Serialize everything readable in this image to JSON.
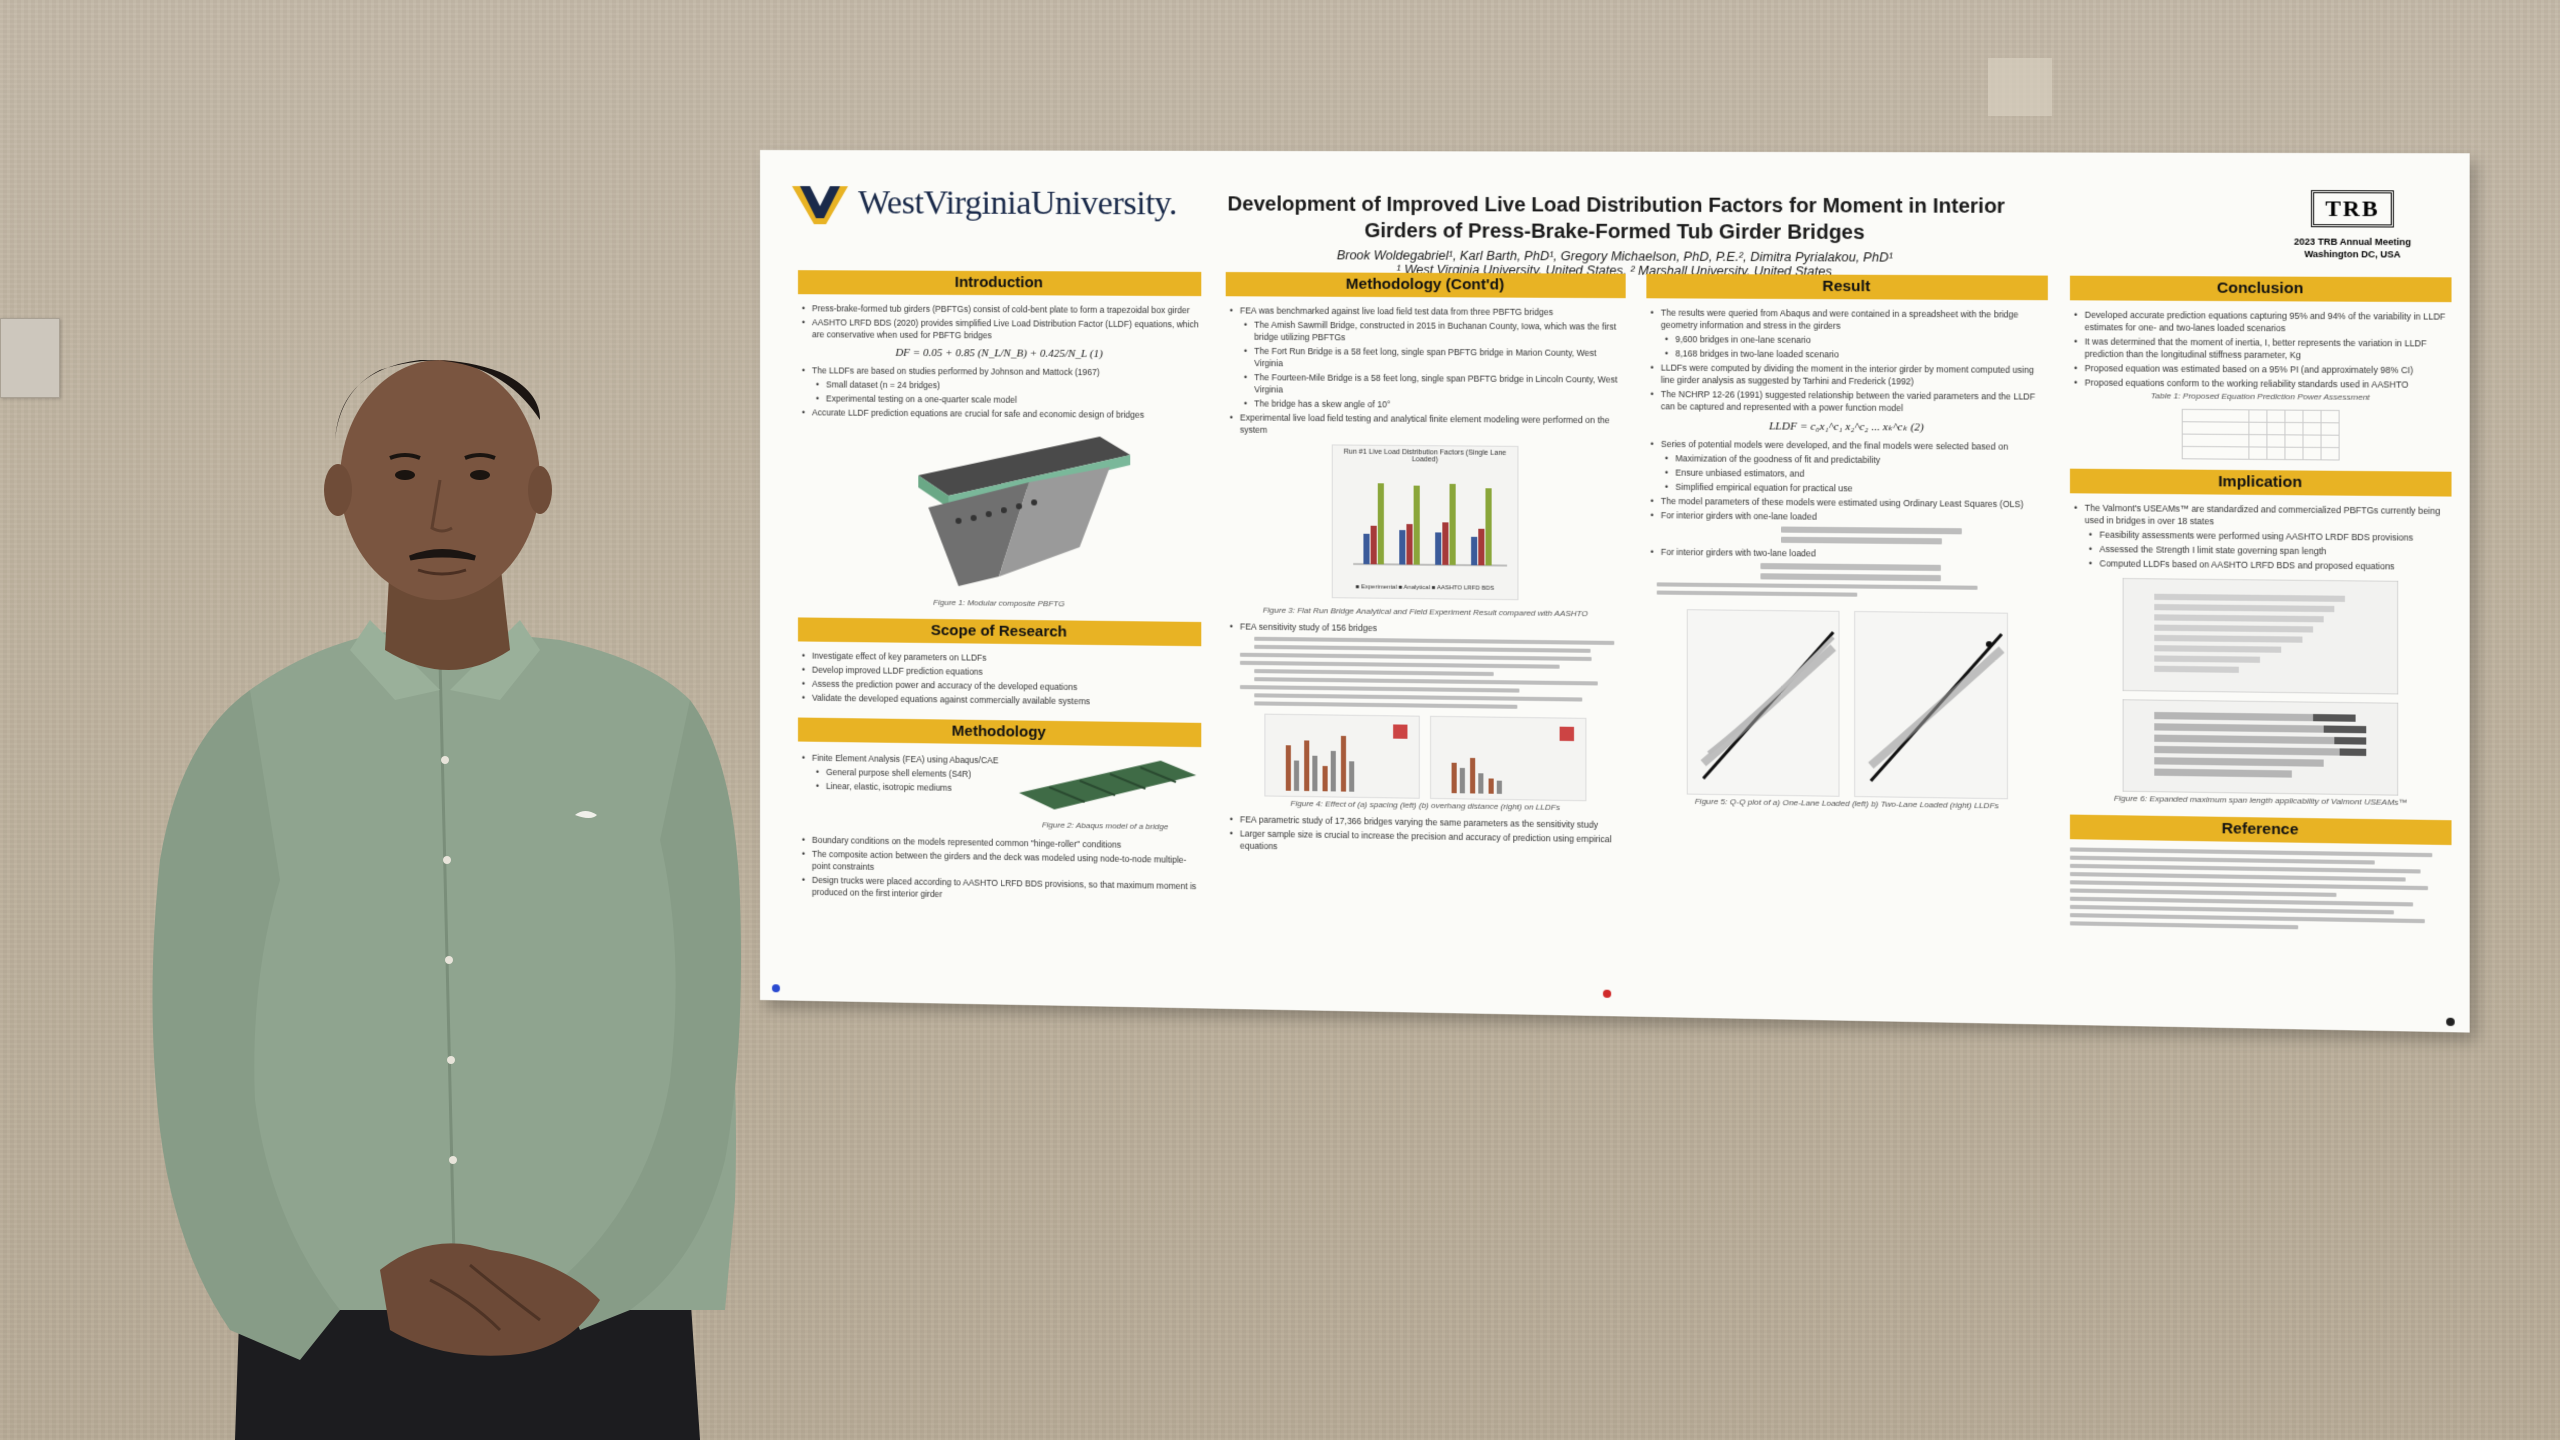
{
  "poster": {
    "university": "WestVirginiaUniversity.",
    "title_line1": "Development of Improved Live Load Distribution Factors for Moment in Interior",
    "title_line2": "Girders of Press-Brake-Formed Tub Girder Bridges",
    "authors": "Brook Woldegabriel¹, Karl Barth, PhD¹, Gregory Michaelson, PhD, P.E.², Dimitra Pyrialakou, PhD¹",
    "affiliations": "¹ West Virginia University, United States, ² Marshall University, United States",
    "trb_logo": "TRB",
    "trb_event": "2023 TRB Annual Meeting",
    "trb_location": "Washington DC, USA",
    "sections": {
      "introduction": "Introduction",
      "scope": "Scope of Research",
      "methodology": "Methodology",
      "methodology_contd": "Methodology (Cont'd)",
      "result": "Result",
      "conclusion": "Conclusion",
      "implication": "Implication",
      "reference": "Reference"
    },
    "introduction_bullets": [
      "Press-brake-formed tub girders (PBFTGs) consist of cold-bent plate to form a trapezoidal box girder",
      "AASHTO LRFD BDS (2020) provides simplified Live Load Distribution Factor (LLDF) equations, which are conservative when used for PBFTG bridges",
      "The LLDFs are based on studies performed by Johnson and Mattock (1967)",
      "Accurate LLDF prediction equations are crucial for safe and economic design of bridges"
    ],
    "introduction_sub": [
      "Small dataset (n = 24 bridges)",
      "Experimental testing on a one-quarter scale model"
    ],
    "intro_equation": "DF = 0.05 + 0.85 (N_L/N_B) + 0.425/N_L   (1)",
    "fig1_caption": "Figure 1: Modular composite PBFTG",
    "scope_bullets": [
      "Investigate effect of key parameters on LLDFs",
      "Develop improved LLDF prediction equations",
      "Assess the prediction power and accuracy of the developed equations",
      "Validate the developed equations against commercially available systems"
    ],
    "methodology_bullets": [
      "Finite Element Analysis (FEA) using Abaqus/CAE",
      "Boundary conditions on the models represented common \"hinge-roller\" conditions",
      "The composite action between the girders and the deck was modeled using node-to-node multiple-point constraints",
      "Design trucks were placed according to AASHTO LRFD BDS provisions, so that maximum moment is produced on the first interior girder"
    ],
    "methodology_sub": [
      "General purpose shell elements (S4R)",
      "Linear, elastic, isotropic mediums"
    ],
    "fig2_caption": "Figure 2: Abaqus model of a bridge",
    "methodology_contd_bullets": [
      "FEA was benchmarked against live load field test data from three PBFTG bridges",
      "Experimental live load field testing and analytical finite element modeling were performed on the system",
      "FEA sensitivity study of 156 bridges",
      "FEA parametric study of 17,366 bridges varying the same parameters as the sensitivity study",
      "Larger sample size is crucial to increase the precision and accuracy of prediction using empirical equations"
    ],
    "methodology_contd_sub": [
      "The Amish Sawmill Bridge, constructed in 2015 in Buchanan County, Iowa, which was the first bridge utilizing PBFTGs",
      "The Fort Run Bridge is a 58 feet long, single span PBFTG bridge in Marion County, West Virginia",
      "The Fourteen-Mile Bridge is a 58 feet long, single span PBFTG bridge in Lincoln County, West Virginia",
      "The bridge has a skew angle of 10°"
    ],
    "fig3_chart_title": "Run #1 Live Load Distribution Factors (Single Lane Loaded)",
    "fig3_legend": "■ Experimental   ■ Analytical   ■ AASHTO LRFD BDS",
    "fig3_caption": "Figure 3: Flat Run Bridge Analytical and Field Experiment Result compared with AASHTO",
    "fig4_caption": "Figure 4: Effect of (a) spacing (left) (b) overhang distance (right) on LLDFs",
    "result_bullets": [
      "The results were queried from Abaqus and were contained in a spreadsheet with the bridge geometry information and stress in the girders",
      "LLDFs were computed by dividing the moment in the interior girder by moment computed using line girder analysis as suggested by Tarhini and Frederick (1992)",
      "The NCHRP 12-26 (1991) suggested relationship between the varied parameters and the LLDF can be captured and represented with a power function model",
      "Series of potential models were developed, and the final models were selected based on",
      "The model parameters of these models were estimated using Ordinary Least Squares (OLS)",
      "For interior girders with one-lane loaded",
      "For interior girders with two-lane loaded"
    ],
    "result_sub": [
      "9,600 bridges in one-lane scenario",
      "8,168 bridges in two-lane loaded scenario",
      "Maximization of the goodness of fit and predictability",
      "Ensure unbiased estimators, and",
      "Simplified empirical equation for practical use"
    ],
    "result_equation": "LLDF = c₀x₁^c₁ x₂^c₂ ... xₖ^cₖ   (2)",
    "fig5_caption": "Figure 5: Q-Q plot of a) One-Lane Loaded (left) b) Two-Lane Loaded (right) LLDFs",
    "conclusion_bullets": [
      "Developed accurate prediction equations capturing 95% and 94% of the variability in LLDF estimates for one- and two-lanes loaded scenarios",
      "It was determined that the moment of inertia, I, better represents the variation in LLDF prediction than the longitudinal stiffness parameter, Kg",
      "Proposed equation was estimated based on a 95% PI (and approximately 98% CI)",
      "Proposed equations conform to the working reliability standards used in AASHTO"
    ],
    "table1_caption": "Table 1: Proposed Equation Prediction Power Assessment",
    "implication_bullets": [
      "The Valmont's USEAMs™ are standardized and commercialized PBFTGs currently being used in bridges in over 18 states",
      "Assessed the Strength I limit state governing span length",
      "Computed LLDFs based on AASHTO LRFD BDS and proposed equations"
    ],
    "implication_sub": [
      "Feasibility assessments were performed using AASHTO LRDF BDS provisions"
    ],
    "fig6_caption": "Figure 6: Expanded maximum span length applicability of Valmont USEAMs™"
  }
}
